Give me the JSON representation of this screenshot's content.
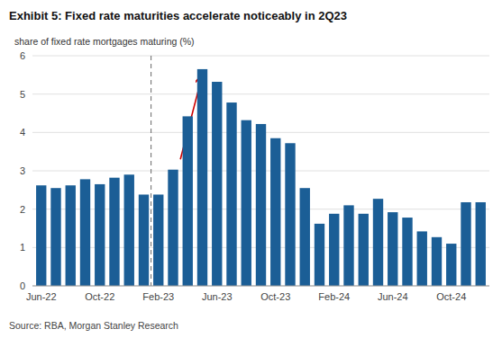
{
  "chart_data": {
    "type": "bar",
    "title": "Exhibit 5: Fixed rate maturities accelerate noticeably in 2Q23",
    "y_label": "share of fixed rate mortgages maturing (%)",
    "source": "Source: RBA, Morgan Stanley Research",
    "categories": [
      "Jun-22",
      null,
      null,
      null,
      "Oct-22",
      null,
      null,
      null,
      "Feb-23",
      null,
      null,
      null,
      "Jun-23",
      null,
      null,
      null,
      "Oct-23",
      null,
      null,
      null,
      "Feb-24",
      null,
      null,
      null,
      "Jun-24",
      null,
      null,
      null,
      "Oct-24",
      null,
      null
    ],
    "values": [
      2.62,
      2.55,
      2.62,
      2.78,
      2.65,
      2.82,
      2.9,
      2.38,
      2.38,
      3.03,
      4.42,
      5.65,
      5.32,
      4.78,
      4.32,
      4.22,
      3.85,
      3.72,
      2.55,
      1.62,
      1.88,
      2.1,
      1.88,
      2.27,
      1.92,
      1.78,
      1.42,
      1.27,
      1.1,
      2.18,
      2.18
    ],
    "color": "#1B5E96",
    "ylim": [
      0,
      6
    ],
    "yticks": [
      0,
      1,
      2,
      3,
      4,
      5,
      6
    ],
    "grid": true,
    "annotations": [
      {
        "type": "vline",
        "x": 7.5,
        "line_style": "dashed"
      },
      {
        "type": "arrow",
        "x": [
          9.5,
          11.0
        ],
        "y": [
          3.3,
          5.5
        ],
        "color": "#cc0000"
      }
    ]
  }
}
